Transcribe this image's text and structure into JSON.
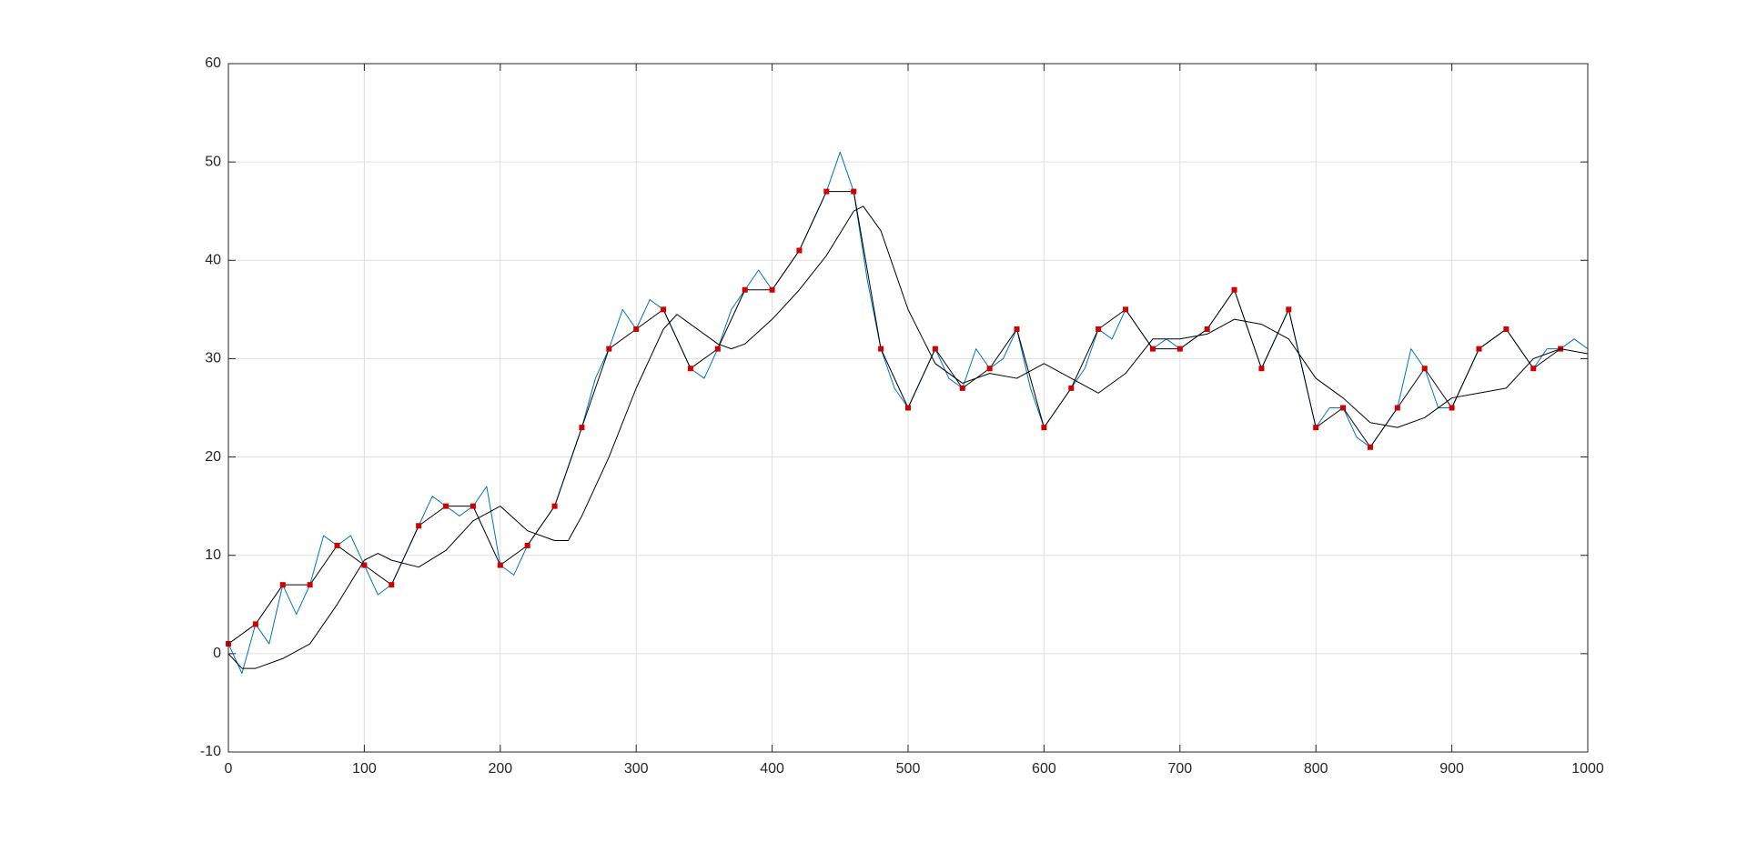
{
  "chart_data": {
    "type": "line",
    "xlim": [
      0,
      1000
    ],
    "ylim": [
      -10,
      60
    ],
    "xticks": [
      0,
      100,
      200,
      300,
      400,
      500,
      600,
      700,
      800,
      900,
      1000
    ],
    "yticks": [
      -10,
      0,
      10,
      20,
      30,
      40,
      50,
      60
    ],
    "grid": true,
    "box": true,
    "series": [
      {
        "color": "#0072bd",
        "width": 1,
        "x": [
          0,
          10,
          20,
          30,
          40,
          50,
          60,
          70,
          80,
          90,
          100,
          110,
          120,
          130,
          140,
          150,
          160,
          170,
          180,
          190,
          200,
          210,
          220,
          230,
          240,
          250,
          260,
          270,
          280,
          290,
          300,
          310,
          320,
          330,
          340,
          350,
          360,
          370,
          380,
          390,
          400,
          410,
          420,
          430,
          440,
          450,
          460,
          470,
          480,
          490,
          500,
          510,
          520,
          530,
          540,
          550,
          560,
          570,
          580,
          590,
          600,
          610,
          620,
          630,
          640,
          650,
          660,
          670,
          680,
          690,
          700,
          710,
          720,
          730,
          740,
          750,
          760,
          770,
          780,
          790,
          800,
          810,
          820,
          830,
          840,
          850,
          860,
          870,
          880,
          890,
          900,
          910,
          920,
          930,
          940,
          950,
          960,
          970,
          980,
          990,
          1000
        ],
        "values": [
          1,
          -2,
          3,
          1,
          7,
          4,
          7,
          12,
          11,
          12,
          9,
          6,
          7,
          10,
          13,
          16,
          15,
          14,
          15,
          17,
          9,
          8,
          11,
          13,
          15,
          19,
          23,
          28,
          31,
          35,
          33,
          36,
          35,
          32,
          29,
          28,
          31,
          35,
          37,
          39,
          37,
          39,
          41,
          44,
          47,
          51,
          47,
          38,
          31,
          27,
          25,
          28,
          31,
          28,
          27,
          31,
          29,
          30,
          33,
          27,
          23,
          25,
          27,
          29,
          33,
          32,
          35,
          33,
          31,
          32,
          31,
          32,
          33,
          35,
          37,
          33,
          29,
          32,
          35,
          29,
          23,
          25,
          25,
          22,
          21,
          23,
          25,
          31,
          29,
          25,
          25,
          28,
          31,
          32,
          33,
          31,
          29,
          31,
          31,
          32,
          31
        ]
      },
      {
        "color": "#000000",
        "width": 1,
        "marker_color": "#d00000",
        "x": [
          0,
          20,
          40,
          60,
          80,
          100,
          120,
          140,
          160,
          180,
          200,
          220,
          240,
          260,
          280,
          300,
          320,
          340,
          360,
          380,
          400,
          420,
          440,
          460,
          480,
          500,
          520,
          540,
          560,
          580,
          600,
          620,
          640,
          660,
          680,
          700,
          720,
          740,
          760,
          780,
          800,
          820,
          840,
          860,
          880,
          900,
          920,
          940,
          960,
          980
        ],
        "values": [
          1,
          3,
          7,
          7,
          11,
          9,
          7,
          13,
          15,
          15,
          9,
          11,
          15,
          23,
          31,
          33,
          35,
          29,
          31,
          37,
          37,
          41,
          47,
          47,
          31,
          25,
          31,
          27,
          29,
          33,
          23,
          27,
          33,
          35,
          31,
          31,
          33,
          37,
          29,
          35,
          23,
          25,
          21,
          25,
          29,
          25,
          31,
          33,
          29,
          31
        ]
      },
      {
        "color": "#000000",
        "width": 1,
        "x": [
          0,
          10,
          20,
          40,
          60,
          80,
          100,
          110,
          120,
          140,
          160,
          180,
          200,
          220,
          240,
          250,
          260,
          280,
          300,
          320,
          330,
          340,
          360,
          370,
          380,
          400,
          420,
          440,
          460,
          467,
          480,
          500,
          520,
          540,
          560,
          580,
          600,
          620,
          640,
          660,
          680,
          700,
          720,
          740,
          760,
          780,
          800,
          820,
          840,
          860,
          880,
          900,
          920,
          940,
          960,
          980,
          1000
        ],
        "values": [
          0,
          -1.5,
          -1.5,
          -0.5,
          1,
          5,
          9.5,
          10.2,
          9.5,
          8.8,
          10.5,
          13.5,
          15,
          12.5,
          11.5,
          11.5,
          14,
          20,
          27,
          33,
          34.5,
          33.5,
          31.5,
          31,
          31.5,
          34,
          37,
          40.5,
          45,
          45.5,
          43,
          35,
          29.5,
          27.5,
          28.5,
          28,
          29.5,
          28,
          26.5,
          28.5,
          32,
          32,
          32.5,
          34,
          33.5,
          32,
          28,
          26,
          23.5,
          23,
          24,
          26,
          26.5,
          27,
          30,
          31,
          30.5
        ]
      }
    ]
  }
}
